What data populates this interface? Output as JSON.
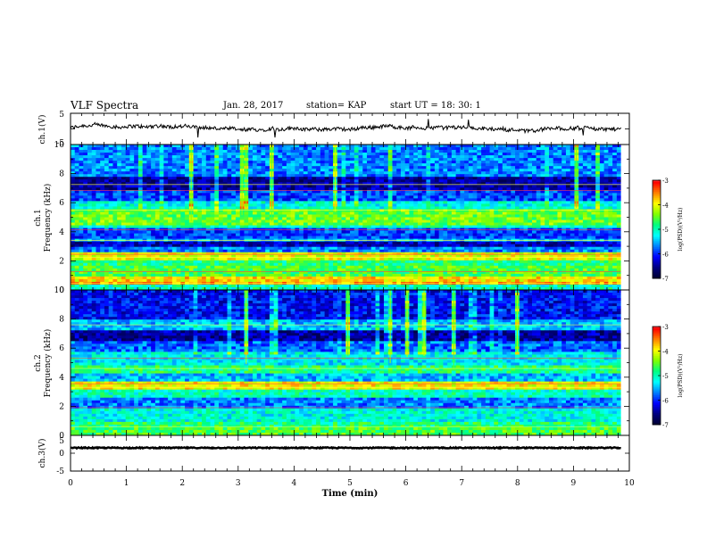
{
  "header": {
    "title": "VLF Spectra",
    "date": "Jan. 28, 2017",
    "station": "station= KAP",
    "start_ut": "start UT =  18: 30: 1"
  },
  "colors": {
    "trace": "#000000",
    "colormap": [
      "#000030",
      "#00007f",
      "#0000ff",
      "#0080ff",
      "#00ffff",
      "#00ff80",
      "#80ff00",
      "#ffff00",
      "#ff8000",
      "#ff0000",
      "#ffffff"
    ]
  },
  "chart_data": [
    {
      "type": "line",
      "name": "ch1-waveform",
      "ylabel": "ch.1(V)",
      "ylim": [
        -5,
        5
      ],
      "yticks": [
        "5",
        "-5"
      ],
      "xlim": [
        0,
        10
      ],
      "x_end": 9.85,
      "y_baseline": 0.3,
      "y_range_approx": [
        -1.5,
        2.5
      ]
    },
    {
      "type": "heatmap",
      "name": "ch1-spectrogram",
      "ylabel": "ch.1\nFrequency (kHz)",
      "ylim": [
        0,
        10
      ],
      "yticks": [
        "0",
        "2",
        "4",
        "6",
        "8",
        "10"
      ],
      "xlim": [
        0,
        10
      ],
      "x_end": 9.85,
      "colorbar": {
        "label": "log(PSD)(V²/Hz)",
        "range": [
          -7,
          -3
        ],
        "ticks": [
          "-3",
          "-4",
          "-5",
          "-6",
          "-7"
        ]
      },
      "bands": [
        {
          "from": 0.0,
          "to": 0.3,
          "level": 0.45
        },
        {
          "from": 0.3,
          "to": 0.6,
          "level": 0.78
        },
        {
          "from": 0.6,
          "to": 1.0,
          "level": 0.72
        },
        {
          "from": 1.0,
          "to": 1.6,
          "level": 0.55
        },
        {
          "from": 1.6,
          "to": 2.1,
          "level": 0.5
        },
        {
          "from": 2.1,
          "to": 2.5,
          "level": 0.68
        },
        {
          "from": 2.5,
          "to": 3.0,
          "level": 0.3
        },
        {
          "from": 3.0,
          "to": 3.3,
          "level": 0.15
        },
        {
          "from": 3.3,
          "to": 3.6,
          "level": 0.35
        },
        {
          "from": 3.6,
          "to": 4.2,
          "level": 0.25
        },
        {
          "from": 4.2,
          "to": 4.5,
          "level": 0.45
        },
        {
          "from": 4.5,
          "to": 5.5,
          "level": 0.58
        },
        {
          "from": 5.5,
          "to": 6.2,
          "level": 0.42
        },
        {
          "from": 6.2,
          "to": 6.8,
          "level": 0.25
        },
        {
          "from": 6.8,
          "to": 7.8,
          "level": 0.12
        },
        {
          "from": 7.8,
          "to": 10.0,
          "level": 0.3
        }
      ],
      "lines_khz": [
        0.45,
        1.25,
        2.25,
        2.45,
        3.4,
        4.15,
        5.5,
        6.85,
        7.25
      ]
    },
    {
      "type": "heatmap",
      "name": "ch2-spectrogram",
      "ylabel": "ch.2\nFrequency (kHz)",
      "ylim": [
        0,
        10
      ],
      "yticks": [
        "0",
        "2",
        "4",
        "6",
        "8",
        "10"
      ],
      "xlim": [
        0,
        10
      ],
      "x_end": 9.85,
      "colorbar": {
        "label": "log(PSD)(V²/Hz)",
        "range": [
          -7,
          -3
        ],
        "ticks": [
          "-3",
          "-4",
          "-5",
          "-6",
          "-7"
        ]
      },
      "bands": [
        {
          "from": 0.0,
          "to": 0.5,
          "level": 0.55
        },
        {
          "from": 0.5,
          "to": 1.0,
          "level": 0.5
        },
        {
          "from": 1.0,
          "to": 1.8,
          "level": 0.42
        },
        {
          "from": 1.8,
          "to": 2.6,
          "level": 0.3
        },
        {
          "from": 2.6,
          "to": 3.2,
          "level": 0.45
        },
        {
          "from": 3.2,
          "to": 3.7,
          "level": 0.7
        },
        {
          "from": 3.7,
          "to": 4.2,
          "level": 0.35
        },
        {
          "from": 4.2,
          "to": 4.8,
          "level": 0.5
        },
        {
          "from": 4.8,
          "to": 5.8,
          "level": 0.4
        },
        {
          "from": 5.8,
          "to": 6.4,
          "level": 0.28
        },
        {
          "from": 6.4,
          "to": 7.2,
          "level": 0.12
        },
        {
          "from": 7.2,
          "to": 8.0,
          "level": 0.35
        },
        {
          "from": 8.0,
          "to": 10.0,
          "level": 0.2
        }
      ],
      "lines_khz": [
        0.6,
        1.9,
        3.3,
        3.55,
        4.6,
        5.3,
        7.6
      ]
    },
    {
      "type": "line",
      "name": "ch3-waveform",
      "ylabel": "ch.3(V)",
      "ylim": [
        -5,
        5
      ],
      "yticks": [
        "5",
        "0",
        "-5"
      ],
      "xlim": [
        0,
        10
      ],
      "x_end": 9.85,
      "y_baseline": 1.5,
      "y_range_approx": [
        1.2,
        1.8
      ]
    }
  ],
  "xaxis": {
    "label": "Time (min)",
    "ticks": [
      "0",
      "1",
      "2",
      "3",
      "4",
      "5",
      "6",
      "7",
      "8",
      "9",
      "10"
    ]
  }
}
